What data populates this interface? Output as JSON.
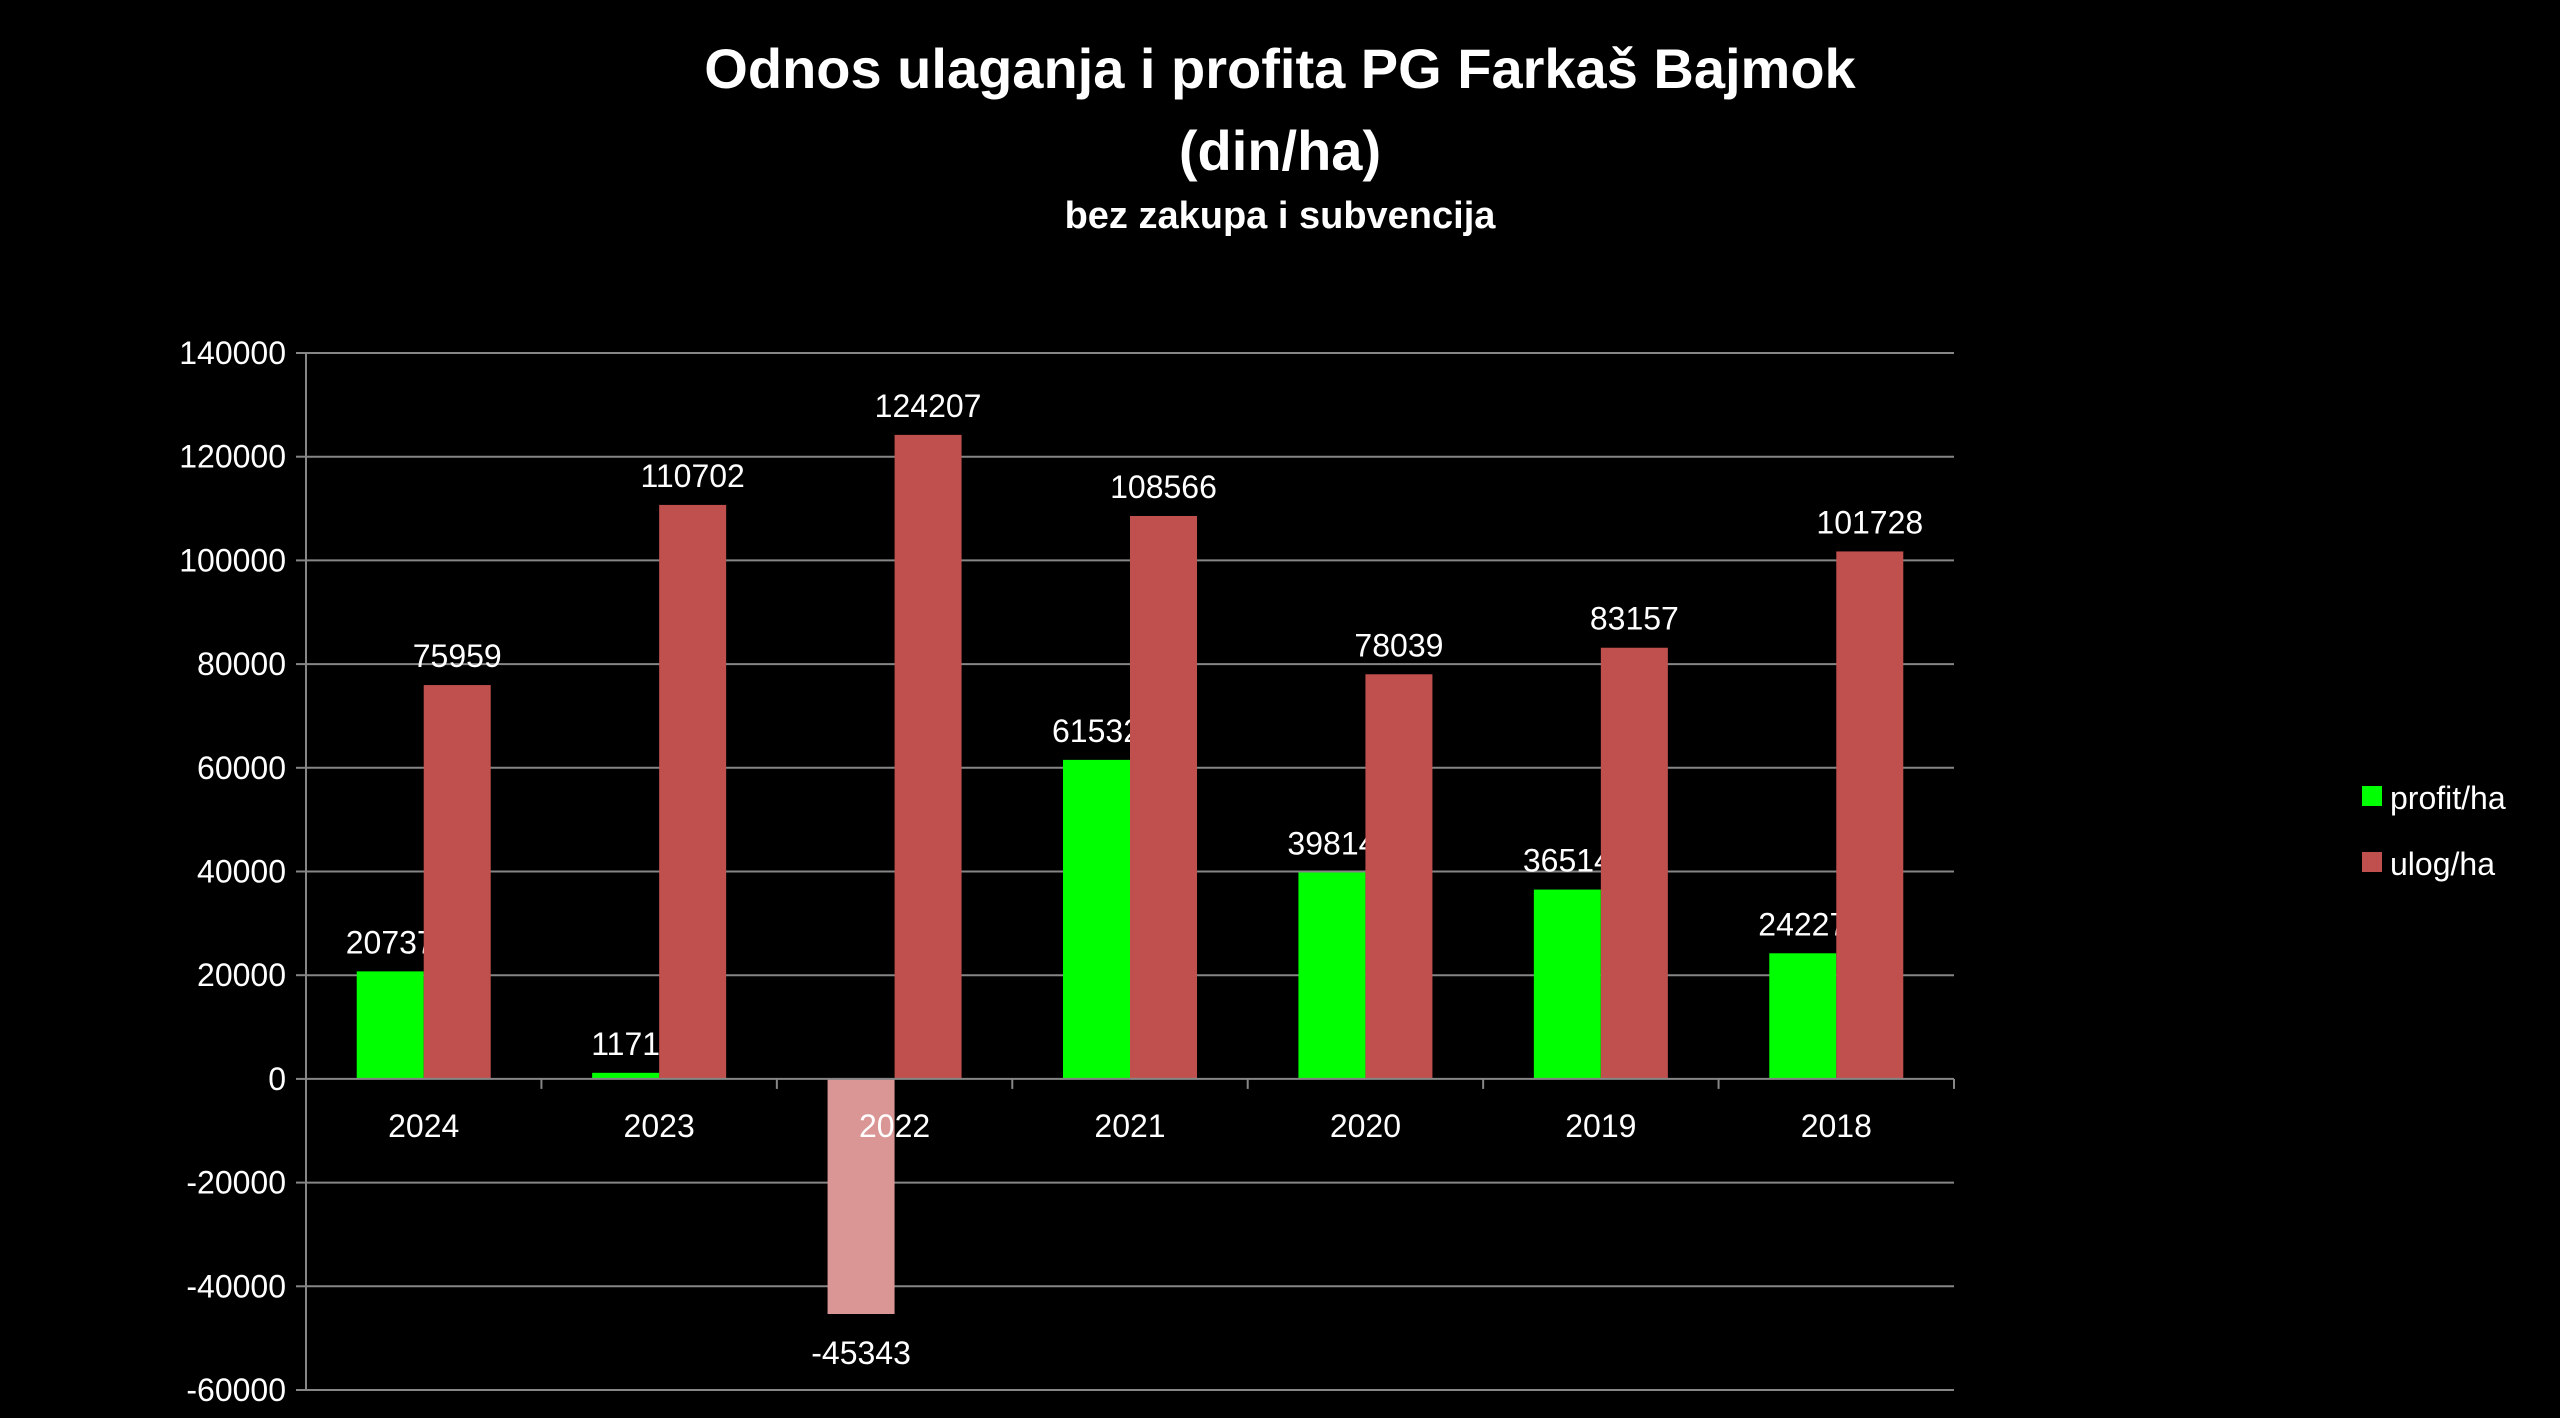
{
  "chart_data": {
    "type": "bar",
    "title_line1": "Odnos ulaganja i profita PG Farkaš Bajmok",
    "title_line2": "(din/ha)",
    "subtitle": "bez zakupa i subvencija",
    "categories": [
      "2024",
      "2023",
      "2022",
      "2021",
      "2020",
      "2019",
      "2018"
    ],
    "series": [
      {
        "name": "profit/ha",
        "color": "#00ff00",
        "negative_color": "#d99694",
        "values": [
          20737,
          1171,
          -45343,
          61532,
          39814,
          36514,
          24227
        ]
      },
      {
        "name": "ulog/ha",
        "color": "#c0504d",
        "values": [
          75959,
          110702,
          124207,
          108566,
          78039,
          83157,
          101728
        ]
      }
    ],
    "ylim": [
      -60000,
      140000
    ],
    "yticks": [
      140000,
      120000,
      100000,
      80000,
      60000,
      40000,
      20000,
      0,
      -20000,
      -40000,
      -60000
    ],
    "grid": true,
    "gridline_color": "#868686",
    "legend_position": "right"
  }
}
